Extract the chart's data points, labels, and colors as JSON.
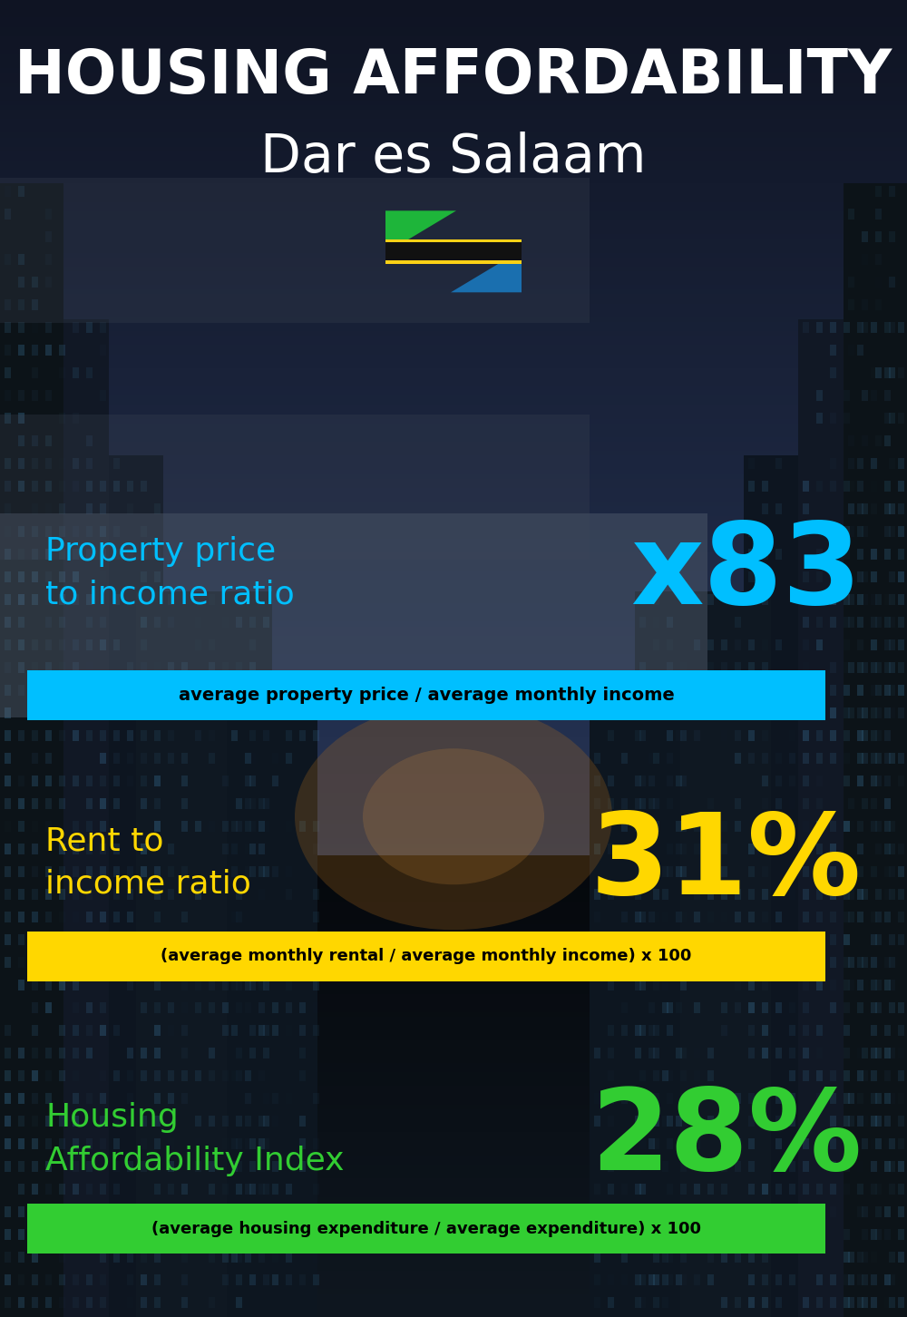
{
  "title_line1": "HOUSING AFFORDABILITY",
  "title_line2": "Dar es Salaam",
  "section1_label": "Property price\nto income ratio",
  "section1_value": "x83",
  "section1_label_color": "#00BFFF",
  "section1_value_color": "#00BFFF",
  "section1_banner": "average property price / average monthly income",
  "section1_banner_bg": "#00BFFF",
  "section2_label": "Rent to\nincome ratio",
  "section2_value": "31%",
  "section2_label_color": "#FFD700",
  "section2_value_color": "#FFD700",
  "section2_banner": "(average monthly rental / average monthly income) x 100",
  "section2_banner_bg": "#FFD700",
  "section3_label": "Housing\nAffordability Index",
  "section3_value": "28%",
  "section3_label_color": "#32CD32",
  "section3_value_color": "#32CD32",
  "section3_banner": "(average housing expenditure / average expenditure) x 100",
  "section3_banner_bg": "#32CD32",
  "bg_color": "#0a0f1a",
  "title_color": "#FFFFFF",
  "subtitle_color": "#FFFFFF",
  "banner_text_color": "#000000",
  "panel_color": "#1a2535",
  "fig_width": 10.0,
  "fig_height": 14.52,
  "dpi": 100
}
